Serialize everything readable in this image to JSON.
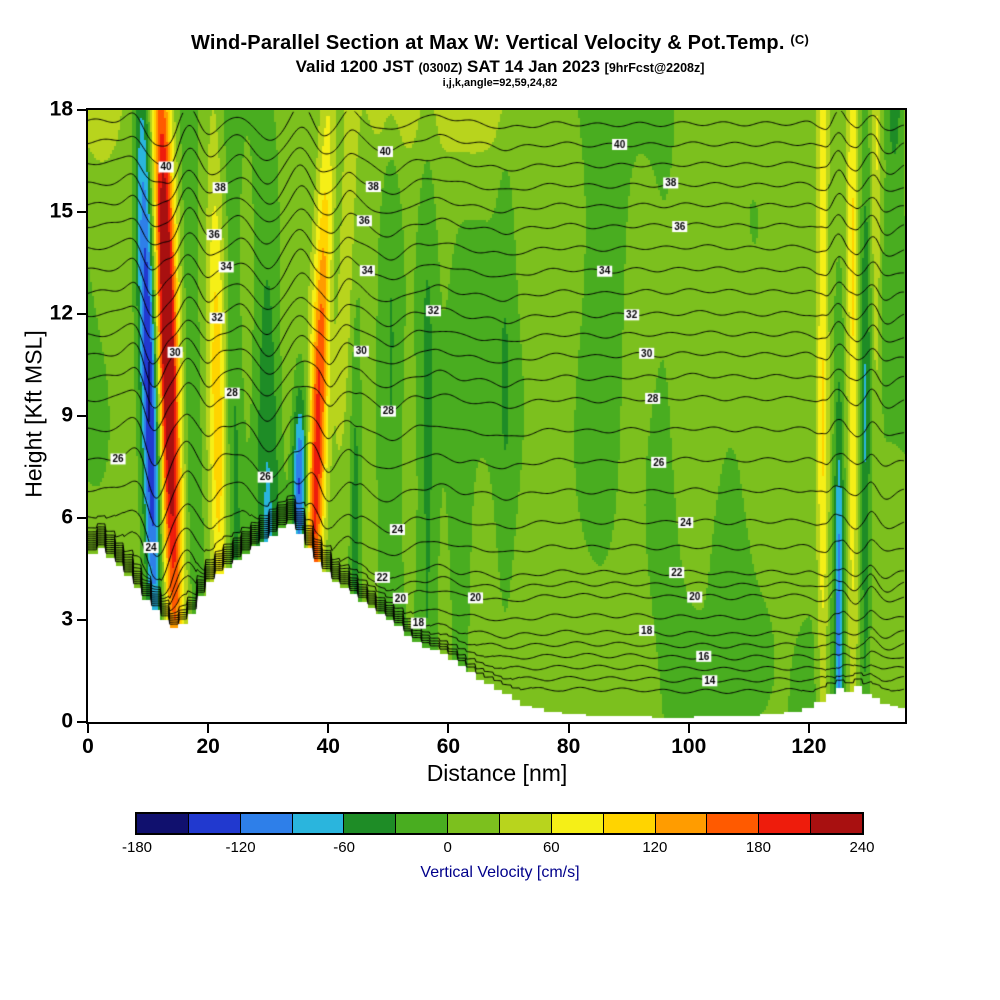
{
  "title": {
    "main": "Wind-Parallel Section at Max W: Vertical Velocity & Pot.Temp.",
    "units": "(C)",
    "valid_prefix": "Valid 1200 JST",
    "valid_z": "(0300Z)",
    "valid_date": "SAT 14 Jan 2023",
    "valid_fcst": "[9hrFcst@2208z]",
    "info": "i,j,k,angle=92,59,24,82"
  },
  "axes": {
    "x": {
      "label": "Distance [nm]",
      "ticks": [
        0,
        20,
        40,
        60,
        80,
        100,
        120
      ],
      "range": [
        0,
        136
      ]
    },
    "y": {
      "label": "Height [Kft MSL]",
      "ticks": [
        0,
        3,
        6,
        9,
        12,
        15,
        18
      ],
      "range": [
        0,
        18
      ]
    }
  },
  "colorbar": {
    "label": "Vertical Velocity [cm/s]",
    "tick_values": [
      -180,
      -120,
      -60,
      0,
      60,
      120,
      180,
      240
    ],
    "range": [
      -180,
      240
    ],
    "bin_size": 30,
    "colors": [
      "#10106e",
      "#2139cf",
      "#2e7fe9",
      "#2ab5dd",
      "#1e8c26",
      "#49ad20",
      "#7cc01e",
      "#b8d41d",
      "#f5ef17",
      "#ffd400",
      "#ff9c00",
      "#ff5a00",
      "#ee1c0c",
      "#a81010"
    ]
  },
  "chart_data": {
    "type": "heatmap",
    "title": "Wind-Parallel Section at Max W: Vertical Velocity & Pot.Temp. (C)",
    "xlabel": "Distance [nm]",
    "ylabel": "Height [Kft MSL]",
    "x_range": [
      0,
      136
    ],
    "y_range": [
      0,
      18
    ],
    "fill_field": "Vertical Velocity [cm/s]",
    "fill_levels_cm_s": [
      -180,
      -150,
      -120,
      -90,
      -60,
      -30,
      0,
      30,
      60,
      90,
      120,
      150,
      180,
      210,
      240
    ],
    "contour_field": "Potential Temperature [C]",
    "contour_levels": {
      "min": 13,
      "max": 41,
      "interval": 1,
      "labeled": [
        14,
        16,
        18,
        20,
        22,
        24,
        26,
        28,
        30,
        32,
        34,
        36,
        38,
        40
      ]
    },
    "contour_labels": [
      {
        "v": 40,
        "x": [
          13,
          49.5,
          88.5
        ]
      },
      {
        "v": 38,
        "x": [
          22,
          47.5,
          97
        ]
      },
      {
        "v": 36,
        "x": [
          21,
          46,
          98.5
        ]
      },
      {
        "v": 34,
        "x": [
          23,
          46.5,
          86
        ]
      },
      {
        "v": 32,
        "x": [
          21.5,
          57.5,
          90.5
        ]
      },
      {
        "v": 30,
        "x": [
          14.5,
          45.5,
          93
        ]
      },
      {
        "v": 28,
        "x": [
          24,
          50,
          94
        ]
      },
      {
        "v": 26,
        "x": [
          5,
          29.5,
          95
        ]
      },
      {
        "v": 24,
        "x": [
          10.5,
          51.5,
          99.5
        ]
      },
      {
        "v": 22,
        "x": [
          49,
          98
        ]
      },
      {
        "v": 20,
        "x": [
          52,
          64.5,
          101
        ]
      },
      {
        "v": 18,
        "x": [
          55,
          93
        ]
      },
      {
        "v": 16,
        "x": [
          102.5
        ]
      },
      {
        "v": 14,
        "x": [
          103.5
        ]
      }
    ],
    "terrain_profile_kft": [
      [
        0,
        4.95
      ],
      [
        1.5,
        5.1
      ],
      [
        3,
        4.85
      ],
      [
        4.5,
        4.6
      ],
      [
        6,
        4.3
      ],
      [
        7.5,
        3.95
      ],
      [
        9,
        3.6
      ],
      [
        10.5,
        3.3
      ],
      [
        12,
        3.0
      ],
      [
        13.5,
        2.75
      ],
      [
        15,
        2.9
      ],
      [
        16.5,
        3.2
      ],
      [
        18,
        3.7
      ],
      [
        19.5,
        4.1
      ],
      [
        21,
        4.35
      ],
      [
        22.5,
        4.55
      ],
      [
        24,
        4.75
      ],
      [
        25.5,
        4.95
      ],
      [
        27,
        5.15
      ],
      [
        28.5,
        5.3
      ],
      [
        30,
        5.5
      ],
      [
        31.5,
        5.7
      ],
      [
        33,
        5.85
      ],
      [
        34.5,
        5.55
      ],
      [
        36,
        5.1
      ],
      [
        37.5,
        4.7
      ],
      [
        39,
        4.4
      ],
      [
        40.5,
        4.1
      ],
      [
        42,
        3.95
      ],
      [
        43.5,
        3.75
      ],
      [
        45,
        3.55
      ],
      [
        46.5,
        3.35
      ],
      [
        48,
        3.15
      ],
      [
        49.5,
        3.0
      ],
      [
        51,
        2.8
      ],
      [
        52.5,
        2.55
      ],
      [
        54,
        2.35
      ],
      [
        55.5,
        2.2
      ],
      [
        57,
        2.1
      ],
      [
        58.5,
        2.0
      ],
      [
        60,
        1.85
      ],
      [
        61.5,
        1.65
      ],
      [
        63,
        1.45
      ],
      [
        64.5,
        1.25
      ],
      [
        66,
        1.1
      ],
      [
        67.5,
        0.95
      ],
      [
        69,
        0.8
      ],
      [
        70.5,
        0.65
      ],
      [
        72,
        0.5
      ],
      [
        74,
        0.4
      ],
      [
        76,
        0.3
      ],
      [
        79,
        0.25
      ],
      [
        83,
        0.2
      ],
      [
        88,
        0.16
      ],
      [
        94,
        0.14
      ],
      [
        101,
        0.15
      ],
      [
        107,
        0.18
      ],
      [
        112,
        0.22
      ],
      [
        116,
        0.3
      ],
      [
        119,
        0.42
      ],
      [
        121,
        0.58
      ],
      [
        123,
        0.85
      ],
      [
        124.5,
        1.02
      ],
      [
        126,
        0.9
      ],
      [
        127.5,
        1.05
      ],
      [
        129,
        0.85
      ],
      [
        130.5,
        0.7
      ],
      [
        132,
        0.55
      ],
      [
        133.5,
        0.45
      ],
      [
        135,
        0.4
      ]
    ],
    "w_bands": [
      {
        "x": 10.8,
        "slope": -0.15,
        "a": -175,
        "w": 1.05,
        "zp": 10,
        "zs": 6
      },
      {
        "x": 14.0,
        "slope": -0.15,
        "a": 265,
        "w": 1.2,
        "zp": 11,
        "zs": 7
      },
      {
        "x": 17.8,
        "slope": -0.12,
        "a": -40,
        "w": 0.9,
        "zp": 9,
        "zs": 6
      },
      {
        "x": 21.8,
        "slope": -0.08,
        "a": 100,
        "w": 1.05,
        "zp": 9,
        "zs": 6
      },
      {
        "x": 24.5,
        "slope": -0.05,
        "a": -45,
        "w": 1.0,
        "zp": 8,
        "zs": 6
      },
      {
        "x": 30.0,
        "slope": -0.03,
        "a": -80,
        "w": 1.6,
        "zp": 7.5,
        "zs": 5.5
      },
      {
        "x": 35.3,
        "slope": 0,
        "a": -140,
        "w": 0.85,
        "zp": 7,
        "zs": 2.0
      },
      {
        "x": 37.8,
        "slope": 0.18,
        "a": 185,
        "w": 1.05,
        "zp": 7.5,
        "zs": 6.5
      },
      {
        "x": 41.5,
        "slope": 0.2,
        "a": 60,
        "w": 0.9,
        "zp": 14,
        "zs": 4
      },
      {
        "x": 44.5,
        "slope": 0,
        "a": -55,
        "w": 0.5,
        "zp": 6,
        "zs": 3
      },
      {
        "x": 50.5,
        "slope": 0,
        "a": -38,
        "w": 1.2,
        "zp": 10,
        "zs": 9
      },
      {
        "x": 56.5,
        "slope": 0,
        "a": -45,
        "w": 1.1,
        "zp": 8,
        "zs": 8
      },
      {
        "x": 62.0,
        "slope": 0,
        "a": -30,
        "w": 1.2,
        "zp": 5,
        "zs": 5
      },
      {
        "x": 69.5,
        "slope": 0,
        "a": -28,
        "w": 1.1,
        "zp": 10,
        "zs": 7
      },
      {
        "x": 85.0,
        "slope": 0,
        "a": -22,
        "w": 2.5,
        "zp": 11,
        "zs": 5
      },
      {
        "x": 96.0,
        "slope": 0,
        "a": -22,
        "w": 2.0,
        "zp": 9,
        "zs": 6
      },
      {
        "x": 107.0,
        "slope": 0,
        "a": -18,
        "w": 2.0,
        "zp": 4,
        "zs": 4
      },
      {
        "x": 122.3,
        "slope": 0,
        "a": 78,
        "w": 0.65,
        "zp": 10,
        "zs": 9
      },
      {
        "x": 125.0,
        "slope": 0,
        "a": -110,
        "w": 0.6,
        "zp": 3.5,
        "zs": 4.5
      },
      {
        "x": 127.3,
        "slope": 0,
        "a": 88,
        "w": 0.65,
        "zp": 12,
        "zs": 8
      },
      {
        "x": 129.4,
        "slope": 0,
        "a": -62,
        "w": 0.55,
        "zp": 8,
        "zs": 7
      },
      {
        "x": 131.2,
        "slope": 0,
        "a": 58,
        "w": 0.55,
        "zp": 15,
        "zs": 5
      },
      {
        "x": 134.2,
        "slope": 0,
        "a": -70,
        "w": 0.9,
        "zp": 18.5,
        "zs": 1.6
      },
      {
        "x": 2.0,
        "slope": 0,
        "a": 55,
        "w": 3.0,
        "zp": 18.8,
        "zs": 1.8
      },
      {
        "x": 50.0,
        "slope": 0,
        "a": 45,
        "w": 3.0,
        "zp": 18.8,
        "zs": 1.5
      },
      {
        "x": 64.5,
        "slope": 0,
        "a": 52,
        "w": 6.0,
        "zp": 19.0,
        "zs": 1.8
      }
    ],
    "theta_z_anchors": [
      [
        13,
        0.85
      ],
      [
        14,
        1.2
      ],
      [
        15,
        1.55
      ],
      [
        16,
        1.9
      ],
      [
        17,
        2.25
      ],
      [
        18,
        2.6
      ],
      [
        19,
        3.1
      ],
      [
        20,
        3.7
      ],
      [
        21,
        4.05
      ],
      [
        22,
        4.4
      ],
      [
        23,
        5.15
      ],
      [
        24,
        5.9
      ],
      [
        25,
        6.8
      ],
      [
        26,
        7.7
      ],
      [
        27,
        8.6
      ],
      [
        28,
        9.5
      ],
      [
        29,
        10.15
      ],
      [
        30,
        10.8
      ],
      [
        31,
        11.4
      ],
      [
        32,
        12.0
      ],
      [
        33,
        12.65
      ],
      [
        34,
        13.3
      ],
      [
        35,
        13.95
      ],
      [
        36,
        14.6
      ],
      [
        37,
        15.2
      ],
      [
        38,
        15.8
      ],
      [
        39,
        16.4
      ],
      [
        40,
        17.0
      ],
      [
        41,
        17.6
      ]
    ],
    "wave_displacements": [
      {
        "x": 8.5,
        "w": 1.8,
        "a": 0.45
      },
      {
        "x": 12.5,
        "w": 2.2,
        "a": -1.15
      },
      {
        "x": 16.5,
        "w": 1.6,
        "a": 0.75
      },
      {
        "x": 20.5,
        "w": 1.6,
        "a": -0.45
      },
      {
        "x": 25,
        "w": 2,
        "a": 0.3
      },
      {
        "x": 30,
        "w": 2,
        "a": -0.5
      },
      {
        "x": 35.5,
        "w": 1.6,
        "a": 0.55
      },
      {
        "x": 39.5,
        "w": 1.6,
        "a": -0.5
      },
      {
        "x": 44,
        "w": 2,
        "a": 0.3
      },
      {
        "x": 50,
        "w": 3,
        "a": -0.25
      },
      {
        "x": 57,
        "w": 3,
        "a": 0.2
      },
      {
        "x": 70,
        "w": 4,
        "a": -0.15
      },
      {
        "x": 122.5,
        "w": 1,
        "a": -0.3
      },
      {
        "x": 125,
        "w": 1,
        "a": 0.4
      },
      {
        "x": 127.5,
        "w": 1,
        "a": -0.35
      },
      {
        "x": 130,
        "w": 1,
        "a": 0.3
      },
      {
        "x": 133,
        "w": 1.2,
        "a": -0.2
      }
    ]
  }
}
